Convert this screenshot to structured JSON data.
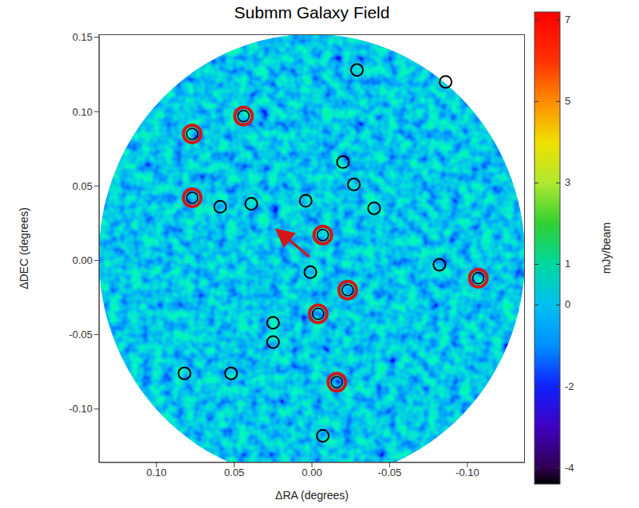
{
  "chart_data": {
    "type": "scatter",
    "title": "Submm Galaxy Field",
    "x_label": "ΔRA (degrees)",
    "y_label": "ΔDEC (degrees)",
    "xlim": [
      0.137,
      -0.137
    ],
    "ylim": [
      -0.136,
      0.152
    ],
    "xticks": [
      {
        "value": 0.1,
        "label": "0.10"
      },
      0.05,
      {
        "value": 0,
        "label": "0.00"
      },
      -0.05,
      {
        "value": -0.1,
        "label": "-0.10"
      }
    ],
    "yticks": [
      {
        "value": -0.1,
        "label": "-0.10"
      },
      -0.05,
      {
        "value": 0,
        "label": "0.00"
      },
      0.05,
      {
        "value": 0.1,
        "label": "0.10"
      },
      0.15
    ],
    "grid": false,
    "series": [
      {
        "color": "#d01818",
        "marker": "double_circle",
        "x": [
          0.077,
          0.044,
          0.077,
          -0.007,
          -0.023,
          -0.004,
          -0.016,
          -0.107
        ],
        "y": [
          0.085,
          0.097,
          0.042,
          0.017,
          -0.02,
          -0.036,
          -0.082,
          -0.012
        ]
      },
      {
        "color": "#000000",
        "marker": "circle",
        "x": [
          -0.029,
          -0.086,
          -0.02,
          -0.027,
          -0.04,
          0.059,
          0.039,
          0.004,
          0.001,
          -0.082,
          0.025,
          0.025,
          0.082,
          0.052,
          -0.007
        ],
        "y": [
          0.128,
          0.12,
          0.066,
          0.051,
          0.035,
          0.036,
          0.038,
          0.04,
          -0.008,
          -0.003,
          -0.042,
          -0.055,
          -0.076,
          -0.076,
          -0.118
        ]
      }
    ],
    "colorbar": {
      "label": "mJy/beam",
      "range": [
        -4.4,
        7.2
      ],
      "ticks": [
        -4,
        -2,
        0,
        1,
        3,
        5,
        7
      ]
    }
  }
}
